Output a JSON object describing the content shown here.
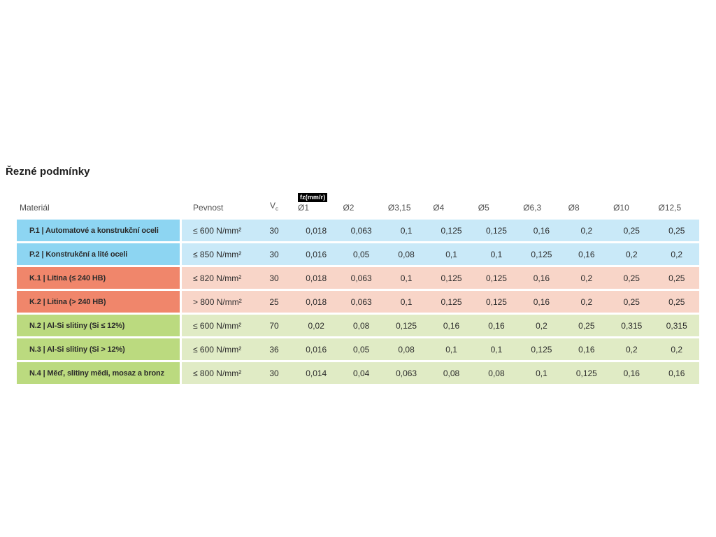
{
  "title": "Řezné podmínky",
  "colors": {
    "blue": {
      "dark": "#8DD5F2",
      "light": "#C9E9F8"
    },
    "salmon": {
      "dark": "#F0866B",
      "light": "#F8D5C8"
    },
    "green": {
      "dark": "#BBDA7F",
      "light": "#E0EBC5"
    },
    "badge_bg": "#000000",
    "badge_text": "#FFFFFF",
    "text": "#2B2B2B",
    "header_text": "#4F4F4F"
  },
  "table": {
    "headers": {
      "material": "Materiál",
      "pevnost": "Pevnost",
      "vc_main": "V",
      "vc_sub": "c",
      "fz_badge": "fz(mm/r)",
      "diameters": [
        "Ø1",
        "Ø2",
        "Ø3,15",
        "Ø4",
        "Ø5",
        "Ø6,3",
        "Ø8",
        "Ø10",
        "Ø12,5"
      ]
    },
    "rows": [
      {
        "palette": "blue",
        "material": "P.1 | Automatové a konstrukční oceli",
        "pevnost": "≤ 600 N/mm²",
        "vc": "30",
        "fz": [
          "0,018",
          "0,063",
          "0,1",
          "0,125",
          "0,125",
          "0,16",
          "0,2",
          "0,25",
          "0,25"
        ]
      },
      {
        "palette": "blue",
        "material": "P.2 | Konstrukční a lité oceli",
        "pevnost": "≤ 850 N/mm²",
        "vc": "30",
        "fz": [
          "0,016",
          "0,05",
          "0,08",
          "0,1",
          "0,1",
          "0,125",
          "0,16",
          "0,2",
          "0,2"
        ]
      },
      {
        "palette": "salmon",
        "material": "K.1 | Litina (≤ 240 HB)",
        "pevnost": "≤ 820 N/mm²",
        "vc": "30",
        "fz": [
          "0,018",
          "0,063",
          "0,1",
          "0,125",
          "0,125",
          "0,16",
          "0,2",
          "0,25",
          "0,25"
        ]
      },
      {
        "palette": "salmon",
        "material": "K.2 | Litina (> 240 HB)",
        "pevnost": "> 800 N/mm²",
        "vc": "25",
        "fz": [
          "0,018",
          "0,063",
          "0,1",
          "0,125",
          "0,125",
          "0,16",
          "0,2",
          "0,25",
          "0,25"
        ]
      },
      {
        "palette": "green",
        "material": "N.2 | Al-Si slitiny (Si ≤ 12%)",
        "pevnost": "≤ 600 N/mm²",
        "vc": "70",
        "fz": [
          "0,02",
          "0,08",
          "0,125",
          "0,16",
          "0,16",
          "0,2",
          "0,25",
          "0,315",
          "0,315"
        ]
      },
      {
        "palette": "green",
        "material": "N.3 | Al-Si slitiny (Si > 12%)",
        "pevnost": "≤ 600 N/mm²",
        "vc": "36",
        "fz": [
          "0,016",
          "0,05",
          "0,08",
          "0,1",
          "0,1",
          "0,125",
          "0,16",
          "0,2",
          "0,2"
        ]
      },
      {
        "palette": "green",
        "material": "N.4 | Měď, slitiny mědi, mosaz a bronz",
        "pevnost": "≤ 800 N/mm²",
        "vc": "30",
        "fz": [
          "0,014",
          "0,04",
          "0,063",
          "0,08",
          "0,08",
          "0,1",
          "0,125",
          "0,16",
          "0,16"
        ]
      }
    ]
  }
}
